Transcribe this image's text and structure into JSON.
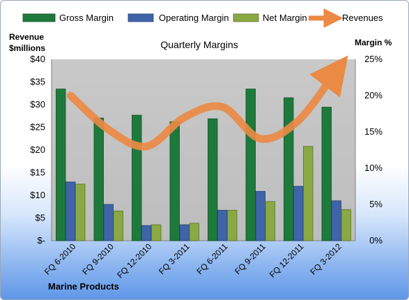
{
  "chart_data": {
    "type": "bar",
    "title": "Quarterly Margins",
    "left_axis_label_line1": "Revenue",
    "left_axis_label_line2": "$millions",
    "right_axis_label": "Margin %",
    "footer_label": "Marine Products",
    "categories": [
      "FQ 6-2010",
      "FQ 9-2010",
      "FQ 12-2010",
      "FQ 3-2011",
      "FQ 6-2011",
      "FQ 9-2011",
      "FQ 12-2011",
      "FQ 3-2012"
    ],
    "left_ticks": [
      "$-",
      "$5",
      "$10",
      "$15",
      "$20",
      "$25",
      "$30",
      "$35",
      "$40"
    ],
    "right_ticks": [
      "0%",
      "5%",
      "10%",
      "15%",
      "20%",
      "25%"
    ],
    "left_ylim": [
      0,
      40
    ],
    "right_ylim": [
      0,
      25
    ],
    "series": [
      {
        "name": "Gross Margin",
        "axis": "right",
        "color": "#1e7a3c",
        "values": [
          20.9,
          16.9,
          17.3,
          16.4,
          16.8,
          20.9,
          19.7,
          18.4
        ]
      },
      {
        "name": "Operating Margin",
        "axis": "right",
        "color": "#3f65a8",
        "values": [
          8.1,
          5.0,
          2.1,
          2.2,
          4.2,
          6.8,
          7.5,
          5.5
        ]
      },
      {
        "name": "Net Margin",
        "axis": "right",
        "color": "#8aa844",
        "values": [
          7.8,
          4.1,
          2.2,
          2.4,
          4.2,
          5.4,
          13.0,
          4.3
        ]
      },
      {
        "name": "Revenues",
        "axis": "left",
        "type": "line",
        "color": "#ea8a45",
        "values": [
          32.0,
          24.5,
          20.8,
          27.2,
          29.5,
          22.5,
          26.5,
          37.5
        ]
      }
    ],
    "legend_position": "top",
    "grid": false
  }
}
